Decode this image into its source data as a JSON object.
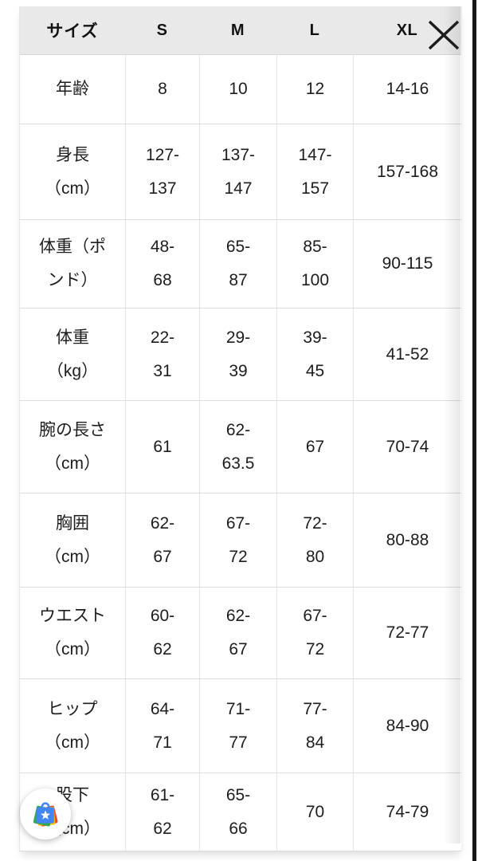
{
  "modal": {
    "close_icon": "✕"
  },
  "table": {
    "header": [
      "サイズ",
      "S",
      "M",
      "L",
      "XL"
    ],
    "rows": [
      {
        "label": "年齢",
        "values": [
          "8",
          "10",
          "12",
          "14-16"
        ]
      },
      {
        "label": "身長\n（cm）",
        "values": [
          "127-\n137",
          "137-\n147",
          "147-\n157",
          "157-168"
        ]
      },
      {
        "label": "体重（ポ\nンド）",
        "values": [
          "48-\n68",
          "65-\n87",
          "85-\n100",
          "90-115"
        ]
      },
      {
        "label": "体重\n（kg）",
        "values": [
          "22-\n31",
          "29-\n39",
          "39-\n45",
          "41-52"
        ]
      },
      {
        "label": "腕の長さ\n（cm）",
        "values": [
          "61",
          "62-\n63.5",
          "67",
          "70-74"
        ]
      },
      {
        "label": "胸囲\n（cm）",
        "values": [
          "62-\n67",
          "67-\n72",
          "72-\n80",
          "80-88"
        ]
      },
      {
        "label": "ウエスト\n（cm）",
        "values": [
          "60-\n62",
          "62-\n67",
          "67-\n72",
          "72-77"
        ]
      },
      {
        "label": "ヒップ\n（cm）",
        "values": [
          "64-\n71",
          "71-\n77",
          "77-\n84",
          "84-90"
        ]
      },
      {
        "label": "股下\n（cm）",
        "values": [
          "61-\n62",
          "65-\n66",
          "70",
          "74-79"
        ]
      }
    ]
  },
  "icons": {
    "close": "close-icon",
    "floating_app": "play-store-bag-icon"
  },
  "colors": {
    "header_bg": "#e9e9e9",
    "row_border": "#dcdcdc",
    "text": "#1d1d1d",
    "edge_bar": "#171717",
    "close_stroke": "#1c1c1c",
    "play_blue": "#4285f4",
    "play_red": "#ea4335",
    "play_yellow": "#fbbc05",
    "play_green": "#34a853",
    "star_white": "#ffffff"
  }
}
